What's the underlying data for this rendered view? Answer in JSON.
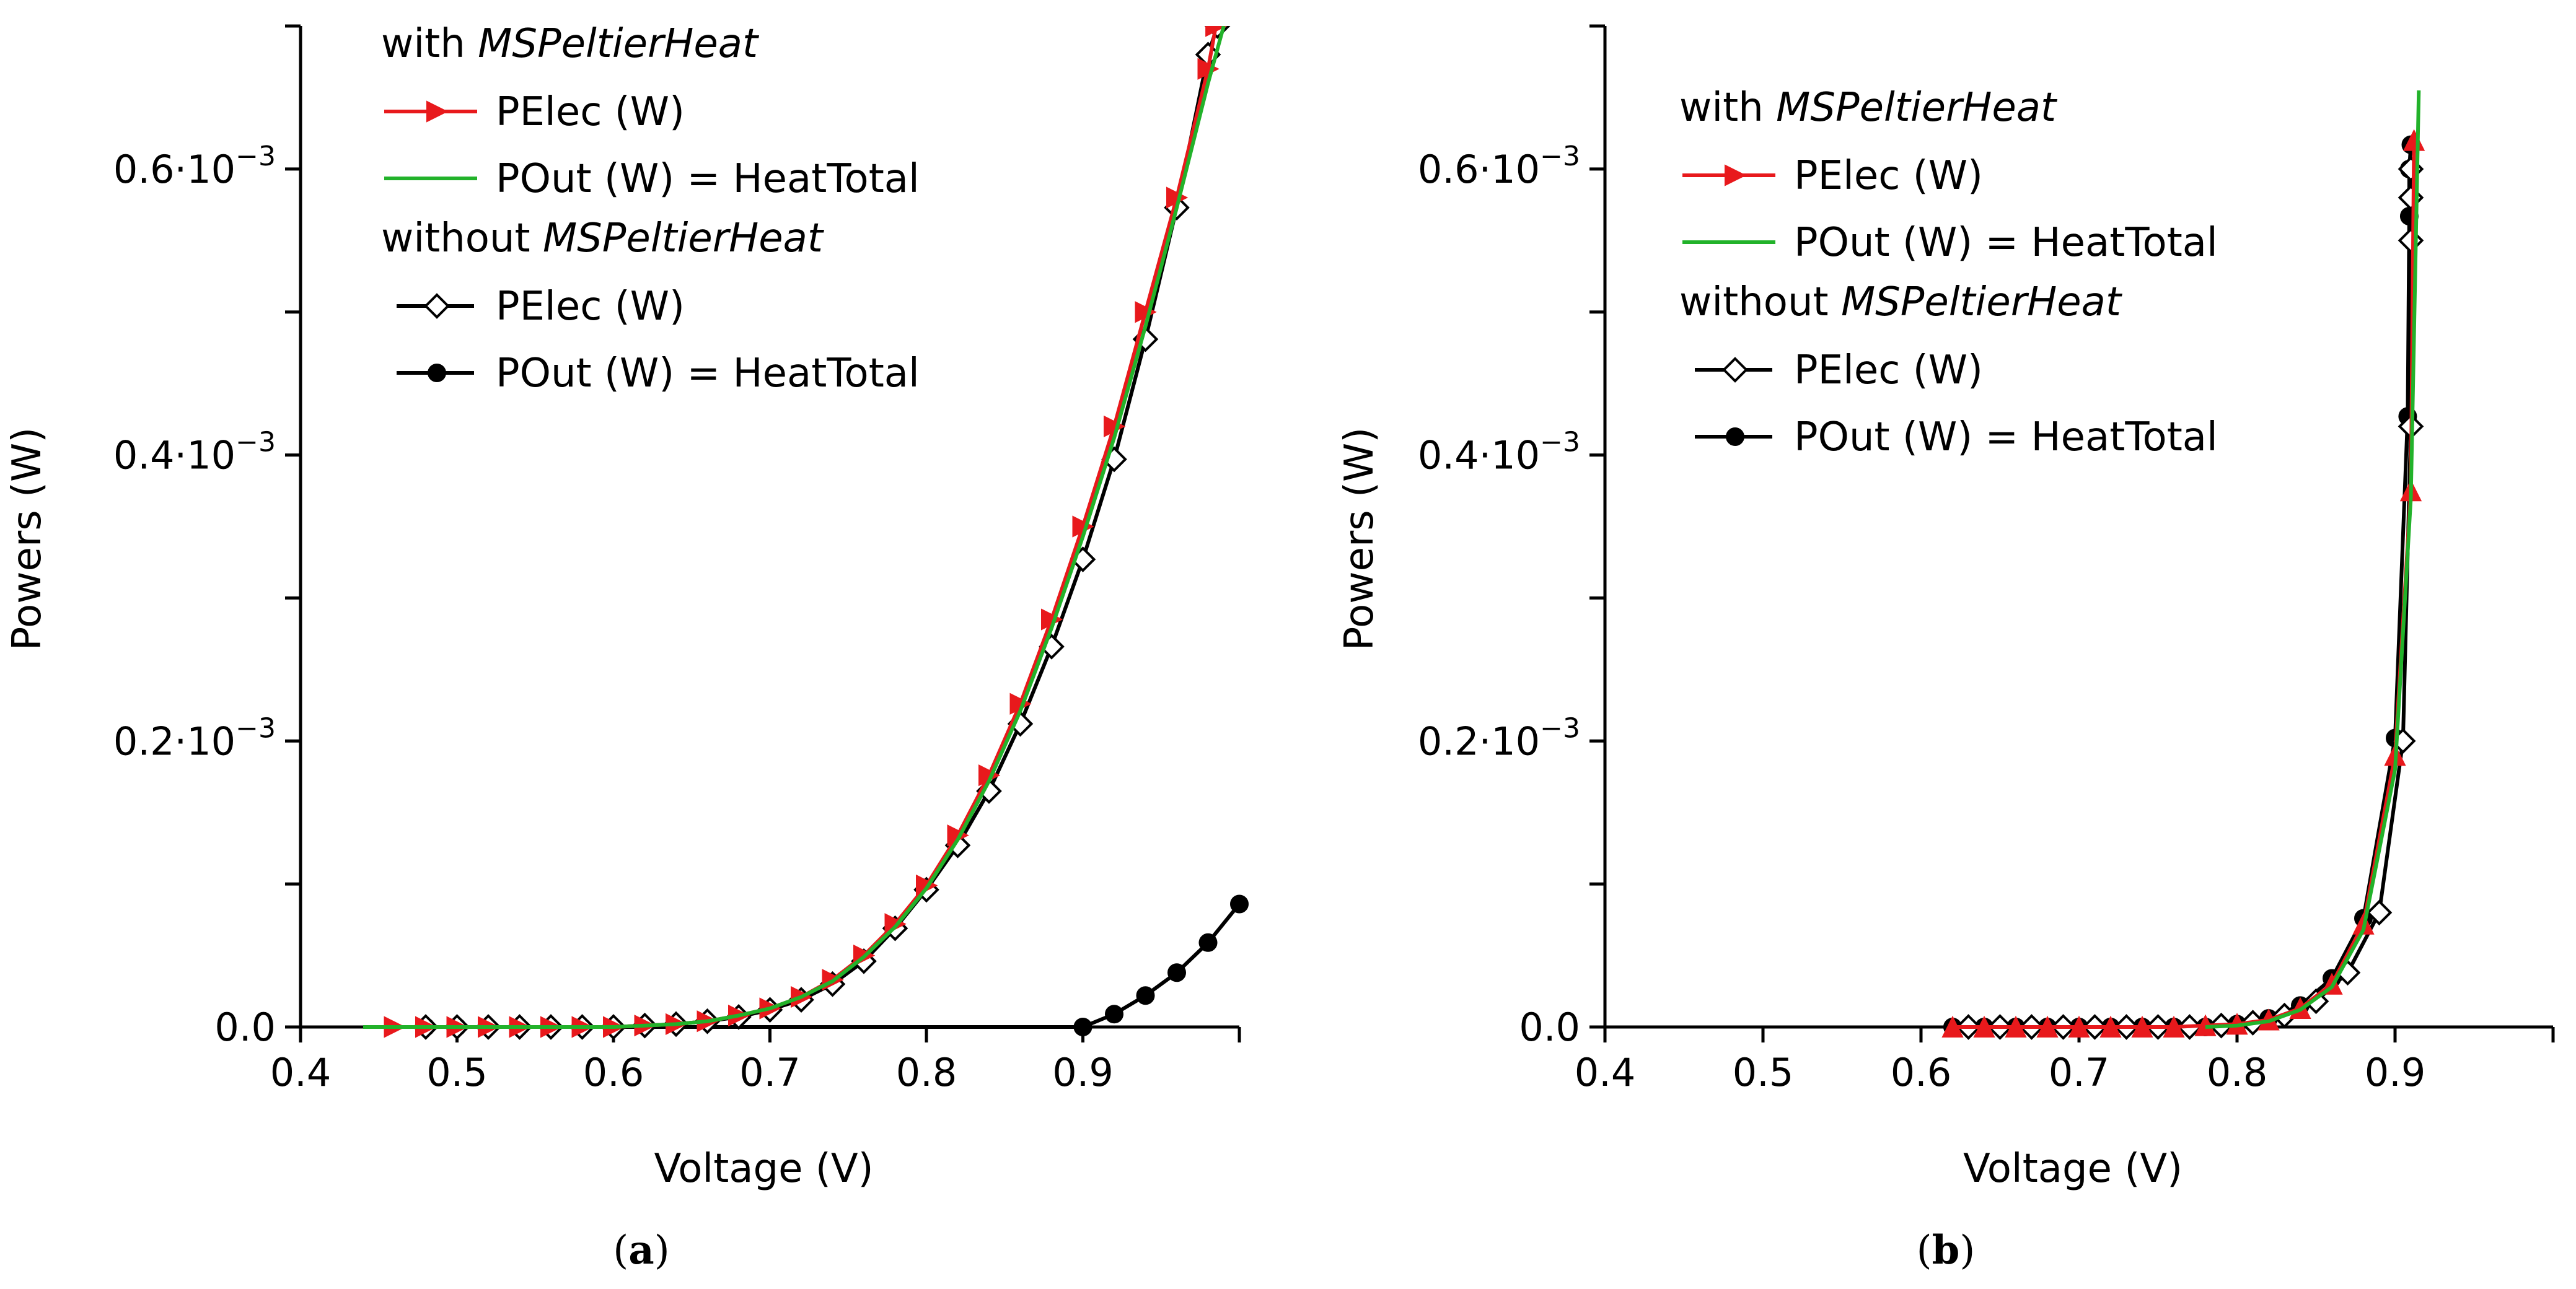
{
  "chart_data": [
    {
      "type": "line",
      "panel_label": "a",
      "xlabel": "Voltage (V)",
      "ylabel": "Powers (W)",
      "xlim": [
        0.4,
        1.0
      ],
      "ylim": [
        0,
        0.0007
      ],
      "x_ticks": [
        0.4,
        0.5,
        0.6,
        0.7,
        0.8,
        0.9,
        1.0
      ],
      "x_tick_labels": [
        "0.4",
        "0.5",
        "0.6",
        "0.7",
        "0.8",
        "0.9",
        ""
      ],
      "y_ticks": [
        0,
        0.0001,
        0.0002,
        0.0003,
        0.0004,
        0.0005,
        0.0006
      ],
      "y_tick_labels": [
        {
          "base": "0.0",
          "exp": ""
        },
        {
          "base": "",
          "exp": ""
        },
        {
          "base": "0.2·10",
          "exp": "−3"
        },
        {
          "base": "",
          "exp": ""
        },
        {
          "base": "0.4·10",
          "exp": "−3"
        },
        {
          "base": "",
          "exp": ""
        },
        {
          "base": "0.6·10",
          "exp": "−3"
        }
      ],
      "legend": {
        "group_with_prefix": "with ",
        "group_without_prefix": "without ",
        "group_model": "MSPeltierHeat",
        "entries_with": [
          "PElec (W)",
          "POut (W) = HeatTotal"
        ],
        "entries_without": [
          "PElec (W)",
          "POut (W) = HeatTotal"
        ]
      },
      "series": [
        {
          "name": "PElec (W)",
          "group": "with",
          "color": "#e8191c",
          "marker": "triangle-right-filled",
          "x": [
            0.46,
            0.48,
            0.5,
            0.52,
            0.54,
            0.56,
            0.58,
            0.6,
            0.62,
            0.64,
            0.66,
            0.68,
            0.7,
            0.72,
            0.74,
            0.76,
            0.78,
            0.8,
            0.82,
            0.84,
            0.86,
            0.88,
            0.9,
            0.92,
            0.94,
            0.96,
            0.98,
            0.985
          ],
          "y": [
            0,
            0,
            0,
            0,
            0,
            0,
            0,
            0.0,
            1e-06,
            2e-06,
            4e-06,
            8e-06,
            1.3e-05,
            2.1e-05,
            3.3e-05,
            5e-05,
            7.2e-05,
            9.9e-05,
            0.000134,
            0.000176,
            0.000226,
            0.000285,
            0.00035,
            0.00042,
            0.0005,
            0.00058,
            0.00067,
            0.0007
          ]
        },
        {
          "name": "POut (W) = HeatTotal",
          "group": "with",
          "color": "#22b22a",
          "marker": "none",
          "x": [
            0.44,
            0.46,
            0.48,
            0.5,
            0.52,
            0.54,
            0.56,
            0.58,
            0.6,
            0.62,
            0.64,
            0.66,
            0.68,
            0.7,
            0.72,
            0.74,
            0.76,
            0.78,
            0.8,
            0.82,
            0.84,
            0.86,
            0.88,
            0.9,
            0.92,
            0.94,
            0.96,
            0.98,
            0.99
          ],
          "y": [
            0,
            0,
            0,
            0,
            0,
            0,
            0,
            0,
            0.0,
            1e-06,
            2e-06,
            4e-06,
            8e-06,
            1.3e-05,
            2.1e-05,
            3.2e-05,
            4.9e-05,
            7e-05,
            9.7e-05,
            0.000131,
            0.000172,
            0.000221,
            0.000279,
            0.000343,
            0.000412,
            0.00049,
            0.000573,
            0.00066,
            0.0007
          ]
        },
        {
          "name": "PElec (W)",
          "group": "without",
          "color": "#000000",
          "marker": "diamond-open",
          "x": [
            0.48,
            0.5,
            0.52,
            0.54,
            0.56,
            0.58,
            0.6,
            0.62,
            0.64,
            0.66,
            0.68,
            0.7,
            0.72,
            0.74,
            0.76,
            0.78,
            0.8,
            0.82,
            0.84,
            0.86,
            0.88,
            0.9,
            0.92,
            0.94,
            0.96,
            0.98,
            0.986
          ],
          "y": [
            0,
            0,
            0,
            0,
            0,
            0,
            0,
            1e-06,
            2e-06,
            4e-06,
            7e-06,
            1.2e-05,
            1.9e-05,
            3e-05,
            4.6e-05,
            6.9e-05,
            9.6e-05,
            0.000127,
            0.000165,
            0.000212,
            0.000266,
            0.000327,
            0.000397,
            0.000481,
            0.000573,
            0.00068,
            0.0007
          ]
        },
        {
          "name": "POut (W) = HeatTotal",
          "group": "without",
          "color": "#000000",
          "marker": "circle-filled",
          "x": [
            0.48,
            0.5,
            0.9,
            0.92,
            0.94,
            0.96,
            0.98,
            1.0
          ],
          "y": [
            0,
            0,
            0,
            9e-06,
            2.2e-05,
            3.8e-05,
            5.9e-05,
            8.6e-05
          ]
        }
      ]
    },
    {
      "type": "line",
      "panel_label": "b",
      "xlabel": "Voltage (V)",
      "ylabel": "Powers (W)",
      "xlim": [
        0.4,
        1.0
      ],
      "ylim": [
        0,
        0.0007
      ],
      "x_ticks": [
        0.4,
        0.5,
        0.6,
        0.7,
        0.8,
        0.9,
        1.0
      ],
      "x_tick_labels": [
        "0.4",
        "0.5",
        "0.6",
        "0.7",
        "0.8",
        "0.9",
        ""
      ],
      "y_ticks": [
        0,
        0.0001,
        0.0002,
        0.0003,
        0.0004,
        0.0005,
        0.0006
      ],
      "y_tick_labels": [
        {
          "base": "0.0",
          "exp": ""
        },
        {
          "base": "",
          "exp": ""
        },
        {
          "base": "0.2·10",
          "exp": "−3"
        },
        {
          "base": "",
          "exp": ""
        },
        {
          "base": "0.4·10",
          "exp": "−3"
        },
        {
          "base": "",
          "exp": ""
        },
        {
          "base": "0.6·10",
          "exp": "−3"
        }
      ],
      "legend": {
        "group_with_prefix": "with ",
        "group_without_prefix": "without ",
        "group_model": "MSPeltierHeat",
        "entries_with": [
          "PElec (W)",
          "POut (W) = HeatTotal"
        ],
        "entries_without": [
          "PElec (W)",
          "POut (W) = HeatTotal"
        ]
      },
      "series": [
        {
          "name": "PElec (W)",
          "group": "with",
          "color": "#e8191c",
          "marker": "triangle-up-filled",
          "x": [
            0.62,
            0.64,
            0.66,
            0.68,
            0.7,
            0.72,
            0.74,
            0.76,
            0.78,
            0.8,
            0.82,
            0.84,
            0.86,
            0.88,
            0.9,
            0.91,
            0.912
          ],
          "y": [
            0,
            0,
            0,
            0,
            0,
            0,
            0,
            0,
            1e-06,
            2e-06,
            5e-06,
            1.3e-05,
            3e-05,
            7.2e-05,
            0.00019,
            0.000375,
            0.00062
          ]
        },
        {
          "name": "POut (W) = HeatTotal",
          "group": "with",
          "color": "#22b22a",
          "marker": "none",
          "x": [
            0.78,
            0.8,
            0.82,
            0.84,
            0.86,
            0.88,
            0.9,
            0.91,
            0.915
          ],
          "y": [
            0,
            1e-06,
            4e-06,
            1.2e-05,
            2.8e-05,
            6.8e-05,
            0.00018,
            0.00037,
            0.000655
          ]
        },
        {
          "name": "PElec (W)",
          "group": "without",
          "color": "#000000",
          "marker": "diamond-open",
          "x": [
            0.63,
            0.65,
            0.67,
            0.69,
            0.71,
            0.73,
            0.75,
            0.77,
            0.79,
            0.81,
            0.83,
            0.85,
            0.87,
            0.89,
            0.905,
            0.91,
            0.91,
            0.91,
            0.91
          ],
          "y": [
            0,
            0,
            0,
            0,
            0,
            0,
            0,
            0,
            1e-06,
            3e-06,
            8e-06,
            1.8e-05,
            3.8e-05,
            8e-05,
            0.0002,
            0.00042,
            0.00055,
            0.00058,
            0.0006
          ]
        },
        {
          "name": "POut (W) = HeatTotal",
          "group": "without",
          "color": "#000000",
          "marker": "circle-filled",
          "x": [
            0.62,
            0.64,
            0.66,
            0.68,
            0.7,
            0.72,
            0.74,
            0.76,
            0.78,
            0.8,
            0.82,
            0.84,
            0.86,
            0.88,
            0.9,
            0.908,
            0.909,
            0.909,
            0.91
          ],
          "y": [
            0,
            0,
            0,
            0,
            0,
            0,
            0,
            0,
            0,
            2e-06,
            6e-06,
            1.5e-05,
            3.4e-05,
            7.6e-05,
            0.000202,
            0.000427,
            0.000567,
            0.0006,
            0.000617
          ]
        }
      ]
    }
  ]
}
